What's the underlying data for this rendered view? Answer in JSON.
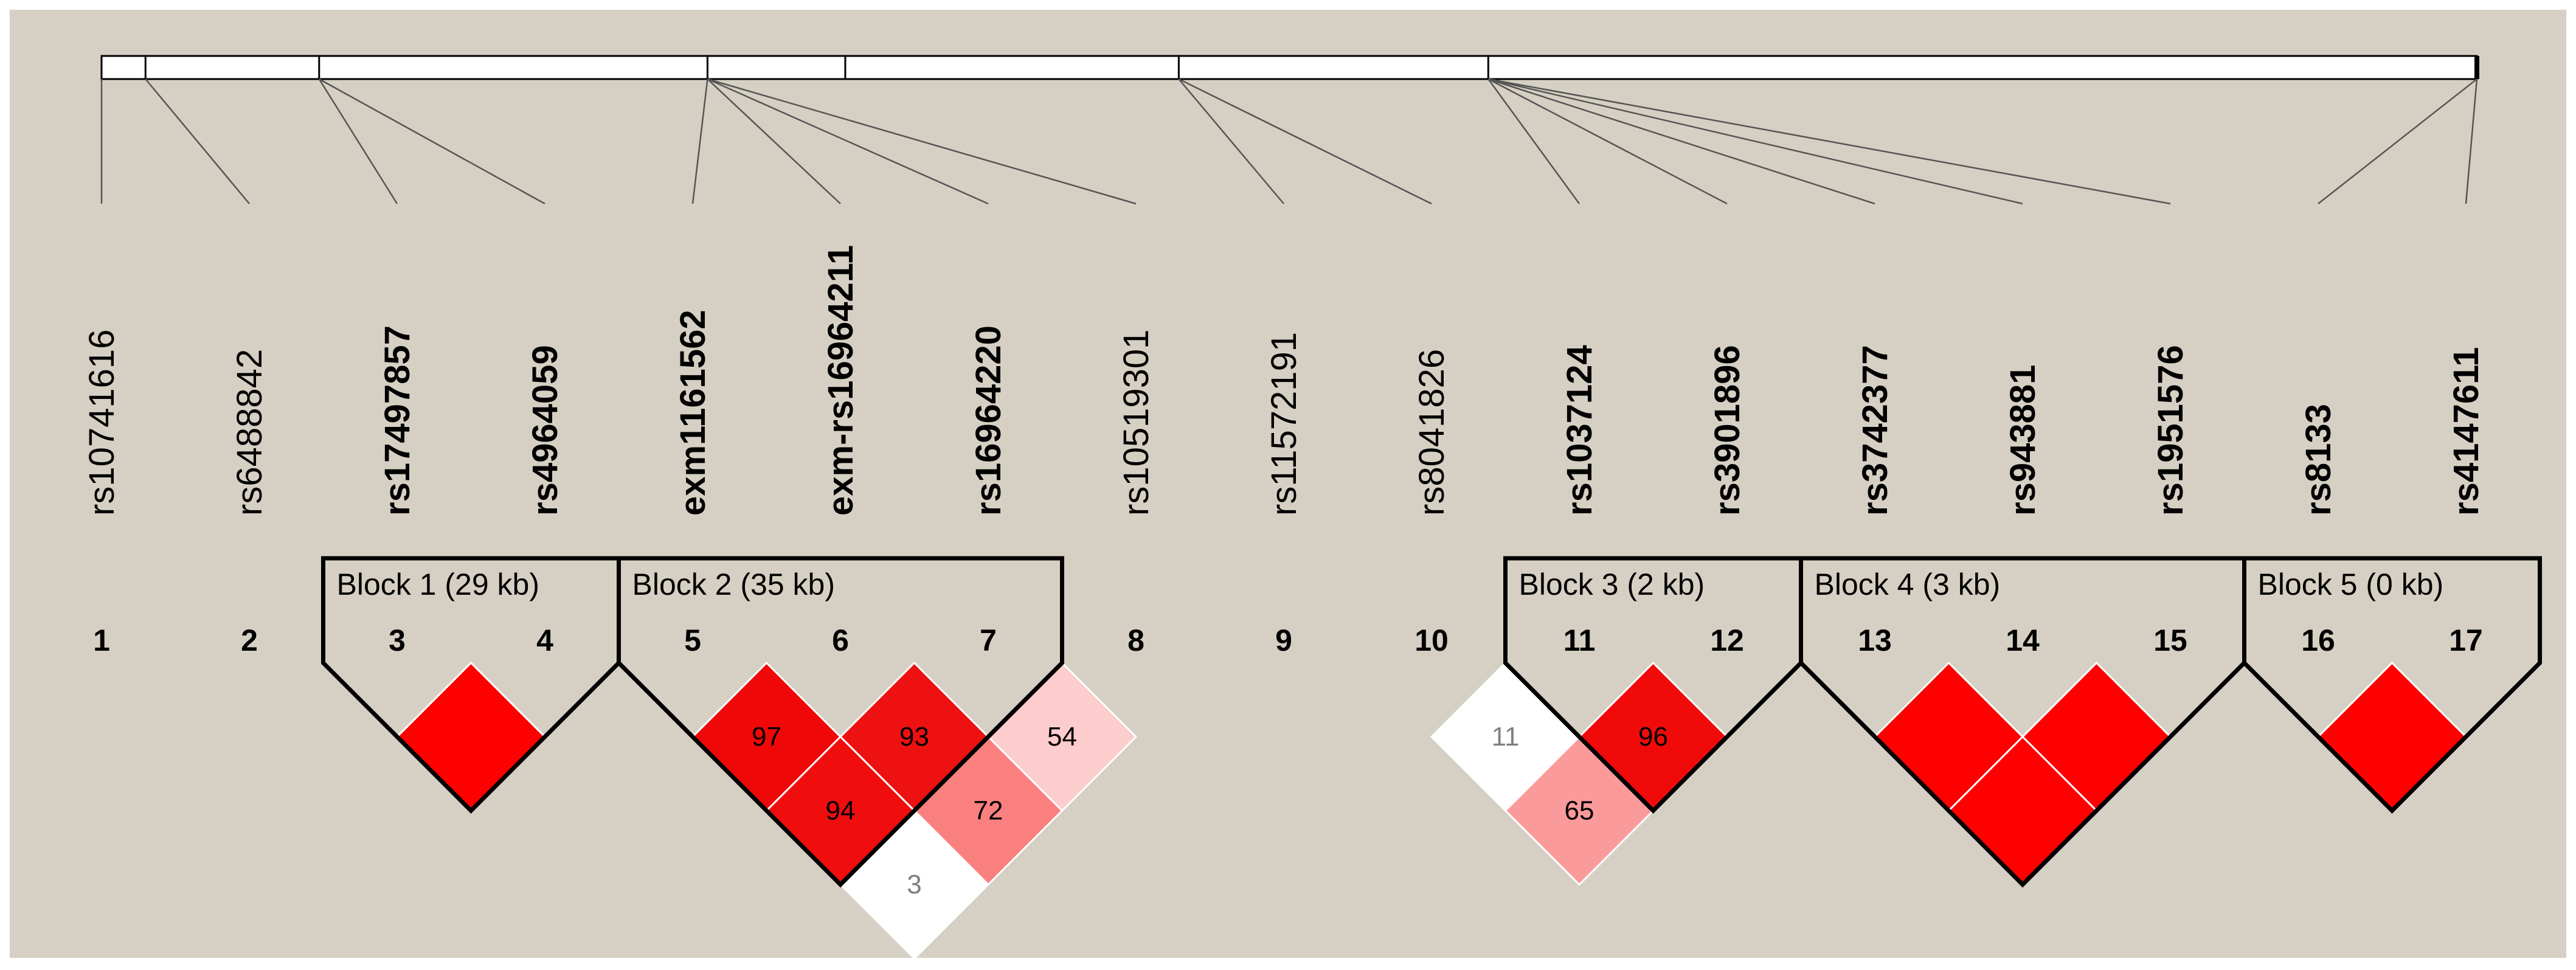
{
  "colors": {
    "background": "#d6d0c4",
    "outer": "#ffffff",
    "strong_ld": "#ff0000",
    "line": "#000000"
  },
  "snps": [
    {
      "index": "1",
      "name": "rs10741616",
      "bold": false
    },
    {
      "index": "2",
      "name": "rs6488842",
      "bold": false
    },
    {
      "index": "3",
      "name": "rs17497857",
      "bold": true
    },
    {
      "index": "4",
      "name": "rs4964059",
      "bold": true
    },
    {
      "index": "5",
      "name": "exm1161562",
      "bold": true
    },
    {
      "index": "6",
      "name": "exm-rs16964211",
      "bold": true
    },
    {
      "index": "7",
      "name": "rs16964220",
      "bold": true
    },
    {
      "index": "8",
      "name": "rs10519301",
      "bold": false
    },
    {
      "index": "9",
      "name": "rs11572191",
      "bold": false
    },
    {
      "index": "10",
      "name": "rs8041826",
      "bold": false
    },
    {
      "index": "11",
      "name": "rs1037124",
      "bold": true
    },
    {
      "index": "12",
      "name": "rs3901896",
      "bold": true
    },
    {
      "index": "13",
      "name": "rs3742377",
      "bold": true
    },
    {
      "index": "14",
      "name": "rs943881",
      "bold": true
    },
    {
      "index": "15",
      "name": "rs1951576",
      "bold": true
    },
    {
      "index": "16",
      "name": "rs8133",
      "bold": true
    },
    {
      "index": "17",
      "name": "rs4147611",
      "bold": true
    }
  ],
  "blocks": [
    {
      "label": "Block 1 (29 kb)",
      "first": 3,
      "last": 4
    },
    {
      "label": "Block 2 (35 kb)",
      "first": 5,
      "last": 7
    },
    {
      "label": "Block 3 (2 kb)",
      "first": 11,
      "last": 12
    },
    {
      "label": "Block 4 (3 kb)",
      "first": 13,
      "last": 15
    },
    {
      "label": "Block 5 (0 kb)",
      "first": 16,
      "last": 17
    }
  ],
  "ld_cells": [
    {
      "i": 3,
      "j": 4,
      "value": "",
      "color": "#ff0000",
      "text_color": "#000000"
    },
    {
      "i": 5,
      "j": 6,
      "value": "97",
      "color": "#f00808",
      "text_color": "#000000"
    },
    {
      "i": 6,
      "j": 7,
      "value": "93",
      "color": "#ee1111",
      "text_color": "#000000"
    },
    {
      "i": 5,
      "j": 7,
      "value": "94",
      "color": "#ef0d0d",
      "text_color": "#000000"
    },
    {
      "i": 7,
      "j": 8,
      "value": "54",
      "color": "#fdcccc",
      "text_color": "#000000"
    },
    {
      "i": 6,
      "j": 8,
      "value": "72",
      "color": "#fa8080",
      "text_color": "#000000"
    },
    {
      "i": 5,
      "j": 8,
      "value": "3",
      "color": "#ffffff",
      "text_color": "#808080"
    },
    {
      "i": 10,
      "j": 11,
      "value": "11",
      "color": "#ffffff",
      "text_color": "#808080"
    },
    {
      "i": 11,
      "j": 12,
      "value": "96",
      "color": "#f00a0a",
      "text_color": "#000000"
    },
    {
      "i": 10,
      "j": 12,
      "value": "65",
      "color": "#fb9a9a",
      "text_color": "#000000"
    },
    {
      "i": 13,
      "j": 14,
      "value": "",
      "color": "#ff0000",
      "text_color": "#000000"
    },
    {
      "i": 14,
      "j": 15,
      "value": "",
      "color": "#ff0000",
      "text_color": "#000000"
    },
    {
      "i": 13,
      "j": 15,
      "value": "",
      "color": "#ff0000",
      "text_color": "#000000"
    },
    {
      "i": 16,
      "j": 17,
      "value": "",
      "color": "#ff0000",
      "text_color": "#000000"
    }
  ],
  "physical_positions": [
    0,
    0.0185,
    0.0916,
    0.2551,
    0.3131,
    0.4535,
    0.5838,
    1.0
  ]
}
